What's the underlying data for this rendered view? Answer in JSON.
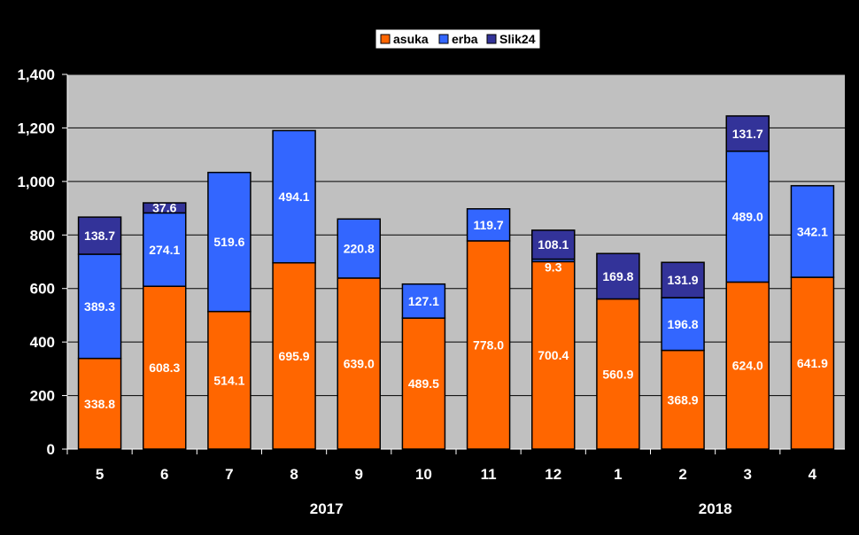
{
  "chart_data": {
    "type": "bar",
    "stacked": true,
    "categories": [
      "5",
      "6",
      "7",
      "8",
      "9",
      "10",
      "11",
      "12",
      "1",
      "2",
      "3",
      "4"
    ],
    "year_labels": [
      {
        "label": "2017",
        "category_index": 4
      },
      {
        "label": "2018",
        "category_index": 10
      }
    ],
    "series": [
      {
        "name": "asuka",
        "color": "#FF6600",
        "values": [
          338.8,
          608.3,
          514.1,
          695.9,
          639.0,
          489.5,
          778.0,
          700.4,
          560.9,
          368.9,
          624.0,
          641.9
        ],
        "labels": [
          "338.8",
          "608.3",
          "514.1",
          "695.9",
          "639.0",
          "489.5",
          "778.0",
          "700.4",
          "560.9",
          "368.9",
          "624.0",
          "641.9"
        ]
      },
      {
        "name": "erba",
        "color": "#3366FF",
        "values": [
          389.3,
          274.1,
          519.6,
          494.1,
          220.8,
          127.1,
          119.7,
          9.3,
          0,
          196.8,
          489.0,
          342.1
        ],
        "labels": [
          "389.3",
          "274.1",
          "519.6",
          "494.1",
          "220.8",
          "127.1",
          "119.7",
          "9.3",
          "",
          "196.8",
          "489.0",
          "342.1"
        ]
      },
      {
        "name": "Slik24",
        "color": "#333399",
        "values": [
          138.7,
          37.6,
          0,
          0,
          0,
          0,
          0,
          108.1,
          169.8,
          131.9,
          131.7,
          0
        ],
        "labels": [
          "138.7",
          "37.6",
          "",
          "",
          "",
          "",
          "",
          "108.1",
          "169.8",
          "131.9",
          "131.7",
          ""
        ]
      }
    ],
    "ylim": [
      0,
      1400
    ],
    "yticks": [
      0,
      200,
      400,
      600,
      800,
      1000,
      1200,
      1400
    ],
    "ytick_labels": [
      "0",
      "200",
      "400",
      "600",
      "800",
      "1,000",
      "1,200",
      "1,400"
    ],
    "grid": true,
    "legend_position": "top-center",
    "plot_background": "#C0C0C0",
    "background": "#000000"
  }
}
